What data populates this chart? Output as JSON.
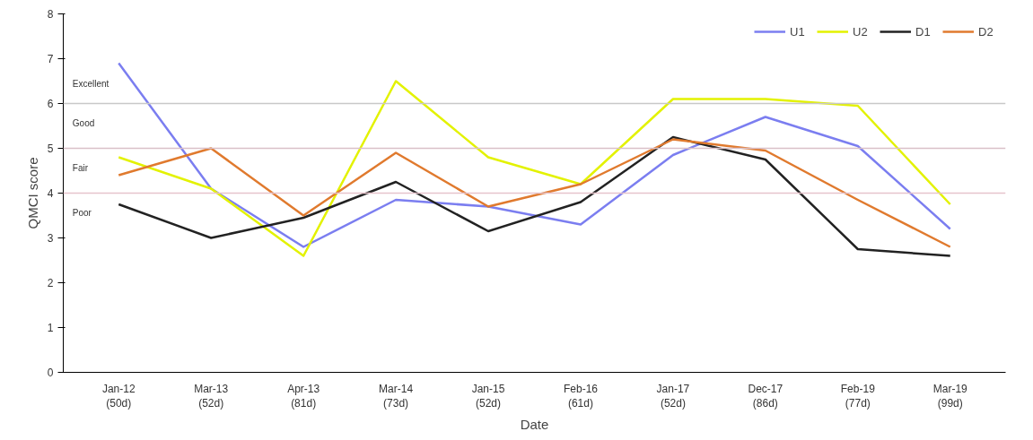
{
  "chart_data": {
    "type": "line",
    "xlabel": "Date",
    "ylabel": "QMCI score",
    "categories": [
      "Jan-12\n(50d)",
      "Mar-13\n(52d)",
      "Apr-13\n(81d)",
      "Mar-14\n(73d)",
      "Jan-15\n(52d)",
      "Feb-16\n(61d)",
      "Jan-17\n(52d)",
      "Dec-17\n(86d)",
      "Feb-19\n(77d)",
      "Mar-19\n(99d)"
    ],
    "series": [
      {
        "name": "U1",
        "color": "#7b7ef0",
        "values": [
          6.9,
          4.1,
          2.8,
          3.85,
          3.7,
          3.3,
          4.85,
          5.7,
          5.05,
          3.2
        ]
      },
      {
        "name": "U2",
        "color": "#e3f200",
        "values": [
          4.8,
          4.1,
          2.6,
          6.5,
          4.8,
          4.2,
          6.1,
          6.1,
          5.95,
          3.75
        ]
      },
      {
        "name": "D1",
        "color": "#222222",
        "values": [
          3.75,
          3.0,
          3.45,
          4.25,
          3.15,
          3.8,
          5.25,
          4.75,
          2.75,
          2.6
        ]
      },
      {
        "name": "D2",
        "color": "#e07a2e",
        "values": [
          4.4,
          5.0,
          3.5,
          4.9,
          3.7,
          4.2,
          5.2,
          4.95,
          3.85,
          2.8
        ]
      }
    ],
    "ylim": [
      0,
      8
    ],
    "yticks": [
      0,
      1,
      2,
      3,
      4,
      5,
      6,
      7,
      8
    ],
    "ref_lines": [
      {
        "axis": "y",
        "value": 6,
        "color": "#c8c8c8"
      },
      {
        "axis": "y",
        "value": 5,
        "color": "#d9c0c8"
      },
      {
        "axis": "y",
        "value": 4,
        "color": "#e6c4cc"
      }
    ],
    "annotations": [
      "Excellent",
      "Good",
      "Fair",
      "Poor"
    ],
    "legend": "top right",
    "grid": false,
    "marker": "none",
    "line_style": "solid"
  }
}
